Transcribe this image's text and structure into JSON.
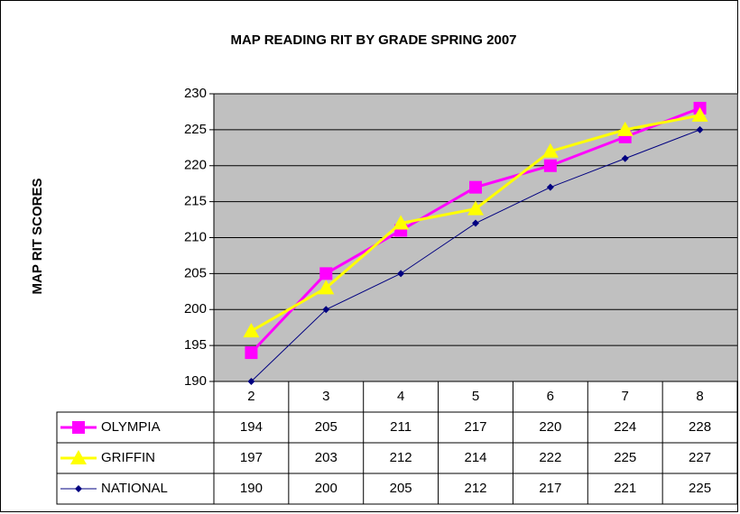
{
  "chart_data": {
    "type": "line",
    "title": "MAP READING RIT BY GRADE SPRING 2007",
    "y_label": "MAP RIT SCORES",
    "categories": [
      "2",
      "3",
      "4",
      "5",
      "6",
      "7",
      "8"
    ],
    "series": [
      {
        "name": "OLYMPIA",
        "color": "#ff00ff",
        "marker": "square",
        "values": [
          194,
          205,
          211,
          217,
          220,
          224,
          228
        ]
      },
      {
        "name": "GRIFFIN",
        "color": "#ffff00",
        "marker": "triangle",
        "values": [
          197,
          203,
          212,
          214,
          222,
          225,
          227
        ]
      },
      {
        "name": "NATIONAL",
        "color": "#000080",
        "marker": "diamond",
        "values": [
          190,
          200,
          205,
          212,
          217,
          221,
          225
        ]
      }
    ],
    "ylim": [
      190,
      230
    ],
    "yticks": [
      190,
      195,
      200,
      205,
      210,
      215,
      220,
      225,
      230
    ],
    "grid": true
  }
}
